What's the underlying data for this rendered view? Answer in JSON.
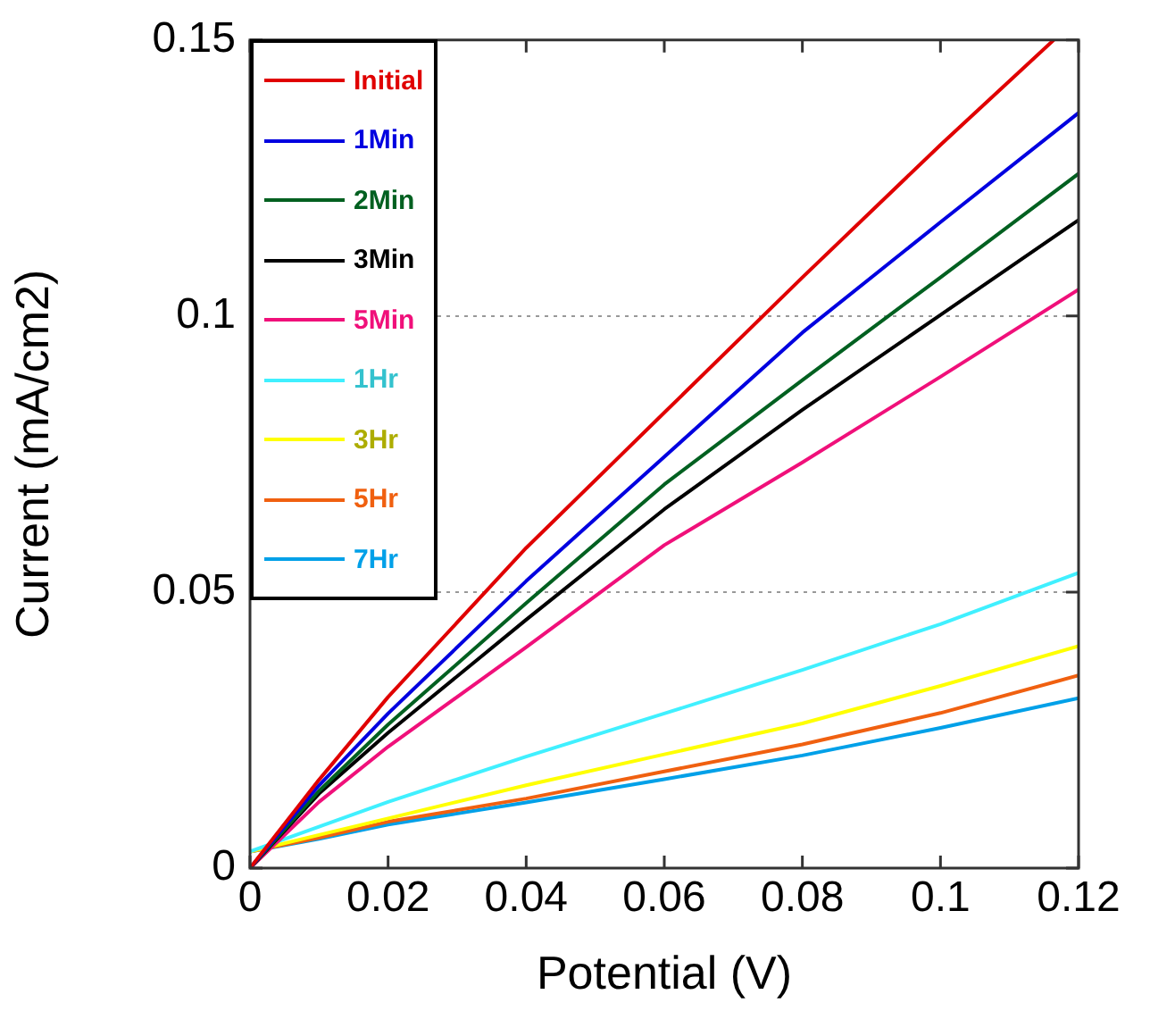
{
  "chart_data": {
    "type": "line",
    "xlabel": "Potential (V)",
    "ylabel": "Current (mA/cm2)",
    "x": [
      0,
      0.01,
      0.02,
      0.04,
      0.06,
      0.08,
      0.1,
      0.12
    ],
    "xlim": [
      0,
      0.12
    ],
    "xticks": [
      0,
      0.02,
      0.04,
      0.06,
      0.08,
      0.1,
      0.12
    ],
    "ylim": [
      0,
      0.15
    ],
    "yticks": [
      0,
      0.05,
      0.1,
      0.15
    ],
    "grid": "y",
    "legend": "top left",
    "marker": "none",
    "line_style": "solid",
    "series": [
      {
        "name": "Initial",
        "color": "#e00000",
        "x": [
          0,
          0.01,
          0.02,
          0.04,
          0.06,
          0.08,
          0.1,
          0.1164
        ],
        "values": [
          0,
          0.016,
          0.031,
          0.058,
          0.0825,
          0.107,
          0.131,
          0.15
        ]
      },
      {
        "name": "1Min",
        "color": "#0000e0",
        "values": [
          0,
          0.015,
          0.028,
          0.052,
          0.0745,
          0.097,
          0.117,
          0.1368
        ]
      },
      {
        "name": "2Min",
        "color": "#006020",
        "values": [
          0,
          0.014,
          0.026,
          0.048,
          0.0695,
          0.0884,
          0.107,
          0.1258
        ]
      },
      {
        "name": "3Min",
        "color": "#000000",
        "values": [
          0,
          0.0135,
          0.0245,
          0.045,
          0.065,
          0.083,
          0.1002,
          0.1174
        ]
      },
      {
        "name": "5Min",
        "color": "#f0107a",
        "values": [
          0,
          0.012,
          0.022,
          0.04,
          0.0585,
          0.0735,
          0.089,
          0.1048
        ]
      },
      {
        "name": "1Hr",
        "color": "#40f0ff",
        "values": [
          0.003,
          0.0075,
          0.012,
          0.0202,
          0.028,
          0.0359,
          0.0442,
          0.0535
        ]
      },
      {
        "name": "3Hr",
        "color": "#ffff00",
        "values": [
          0.003,
          0.006,
          0.009,
          0.015,
          0.0206,
          0.0262,
          0.033,
          0.0402
        ]
      },
      {
        "name": "5Hr",
        "color": "#f06010",
        "values": [
          0.003,
          0.0055,
          0.0084,
          0.0126,
          0.0175,
          0.0224,
          0.0281,
          0.0349
        ]
      },
      {
        "name": "7Hr",
        "color": "#00a0e8",
        "values": [
          0.003,
          0.0053,
          0.0079,
          0.0119,
          0.0161,
          0.0204,
          0.0254,
          0.0308
        ]
      }
    ]
  }
}
